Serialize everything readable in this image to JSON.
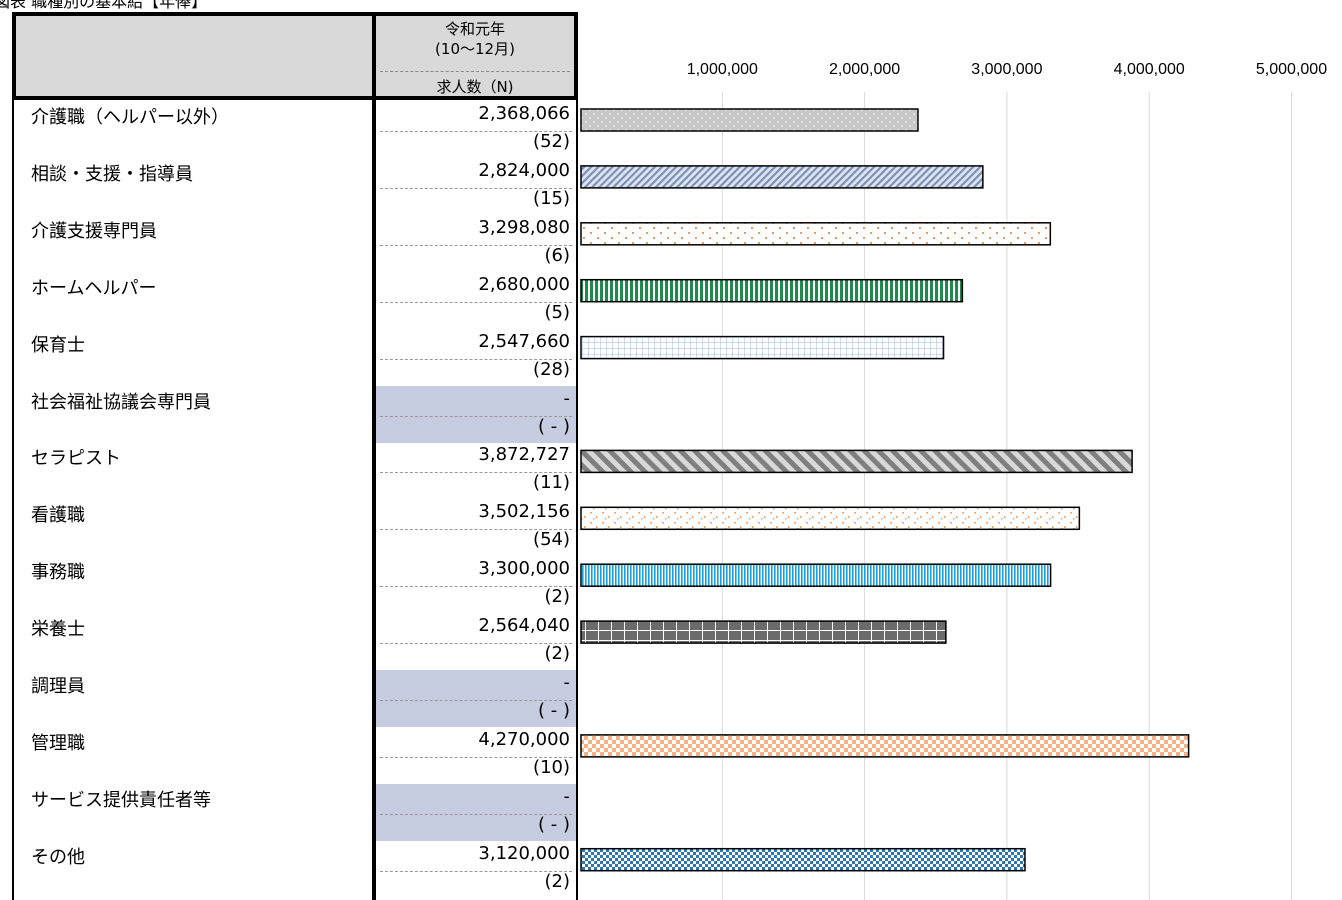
{
  "caption": "図表 職種別の基本給【年俸】",
  "header": {
    "line1": "令和元年",
    "line2": "(10～12月)",
    "line3": "求人数（N)"
  },
  "colors": {
    "header_bg": "#d9d9d9",
    "empty_cell_bg": "#c7cde0",
    "grid": "#d9d9d9"
  },
  "rows": [
    {
      "label": "介護職（ヘルパー以外）",
      "value": "2,368,066",
      "n": "(52)"
    },
    {
      "label": "相談・支援・指導員",
      "value": "2,824,000",
      "n": "(15)"
    },
    {
      "label": "介護支援専門員",
      "value": "3,298,080",
      "n": "(6)"
    },
    {
      "label": "ホームヘルパー",
      "value": "2,680,000",
      "n": "(5)"
    },
    {
      "label": "保育士",
      "value": "2,547,660",
      "n": "(28)"
    },
    {
      "label": "社会福祉協議会専門員",
      "value": "-",
      "n": "( - )"
    },
    {
      "label": "セラピスト",
      "value": "3,872,727",
      "n": "(11)"
    },
    {
      "label": "看護職",
      "value": "3,502,156",
      "n": "(54)"
    },
    {
      "label": "事務職",
      "value": "3,300,000",
      "n": "(2)"
    },
    {
      "label": "栄養士",
      "value": "2,564,040",
      "n": "(2)"
    },
    {
      "label": "調理員",
      "value": "-",
      "n": "( - )"
    },
    {
      "label": "管理職",
      "value": "4,270,000",
      "n": "(10)"
    },
    {
      "label": "サービス提供責任者等",
      "value": "-",
      "n": "( - )"
    },
    {
      "label": "その他",
      "value": "3,120,000",
      "n": "(2)"
    }
  ],
  "chart_data": {
    "type": "bar",
    "orientation": "horizontal",
    "categories": [
      "介護職（ヘルパー以外）",
      "相談・支援・指導員",
      "介護支援専門員",
      "ホームヘルパー",
      "保育士",
      "社会福祉協議会専門員",
      "セラピスト",
      "看護職",
      "事務職",
      "栄養士",
      "調理員",
      "管理職",
      "サービス提供責任者等",
      "その他"
    ],
    "values": [
      2368066,
      2824000,
      3298080,
      2680000,
      2547660,
      null,
      3872727,
      3502156,
      3300000,
      2564040,
      null,
      4270000,
      null,
      3120000
    ],
    "xlim": [
      0,
      5000000
    ],
    "xticks": [
      "1,000,000",
      "2,000,000",
      "3,000,000",
      "4,000,000",
      "5,000,000"
    ],
    "xtick_values": [
      1000000,
      2000000,
      3000000,
      4000000,
      5000000
    ],
    "grid": true,
    "bar_styles": [
      {
        "pattern": "dots",
        "fill": "#c8c8c8",
        "fg": "#ffffff"
      },
      {
        "pattern": "diag",
        "fill": "#dfe5f0",
        "fg": "#7a90b8"
      },
      {
        "pattern": "sparse-dots",
        "fill": "#ffffff",
        "fg": "#e07b39"
      },
      {
        "pattern": "vlines",
        "fill": "#ffffff",
        "fg": "#1f8a4c"
      },
      {
        "pattern": "grid",
        "fill": "#ffffff",
        "fg": "#9fb7e0"
      },
      null,
      {
        "pattern": "diag-wide",
        "fill": "#d9d9d9",
        "fg": "#7f7f7f"
      },
      {
        "pattern": "confetti",
        "fill": "#ffffff",
        "fg": "#f2a36b"
      },
      {
        "pattern": "vlines-fine",
        "fill": "#ffffff",
        "fg": "#1aa0d8"
      },
      {
        "pattern": "grid-dark",
        "fill": "#6b6b6b",
        "fg": "#ffffff"
      },
      null,
      {
        "pattern": "checker",
        "fill": "#ffffff",
        "fg": "#f4b183"
      },
      null,
      {
        "pattern": "checker-blue",
        "fill": "#2e75b6",
        "fg": "#ffffff"
      }
    ]
  }
}
